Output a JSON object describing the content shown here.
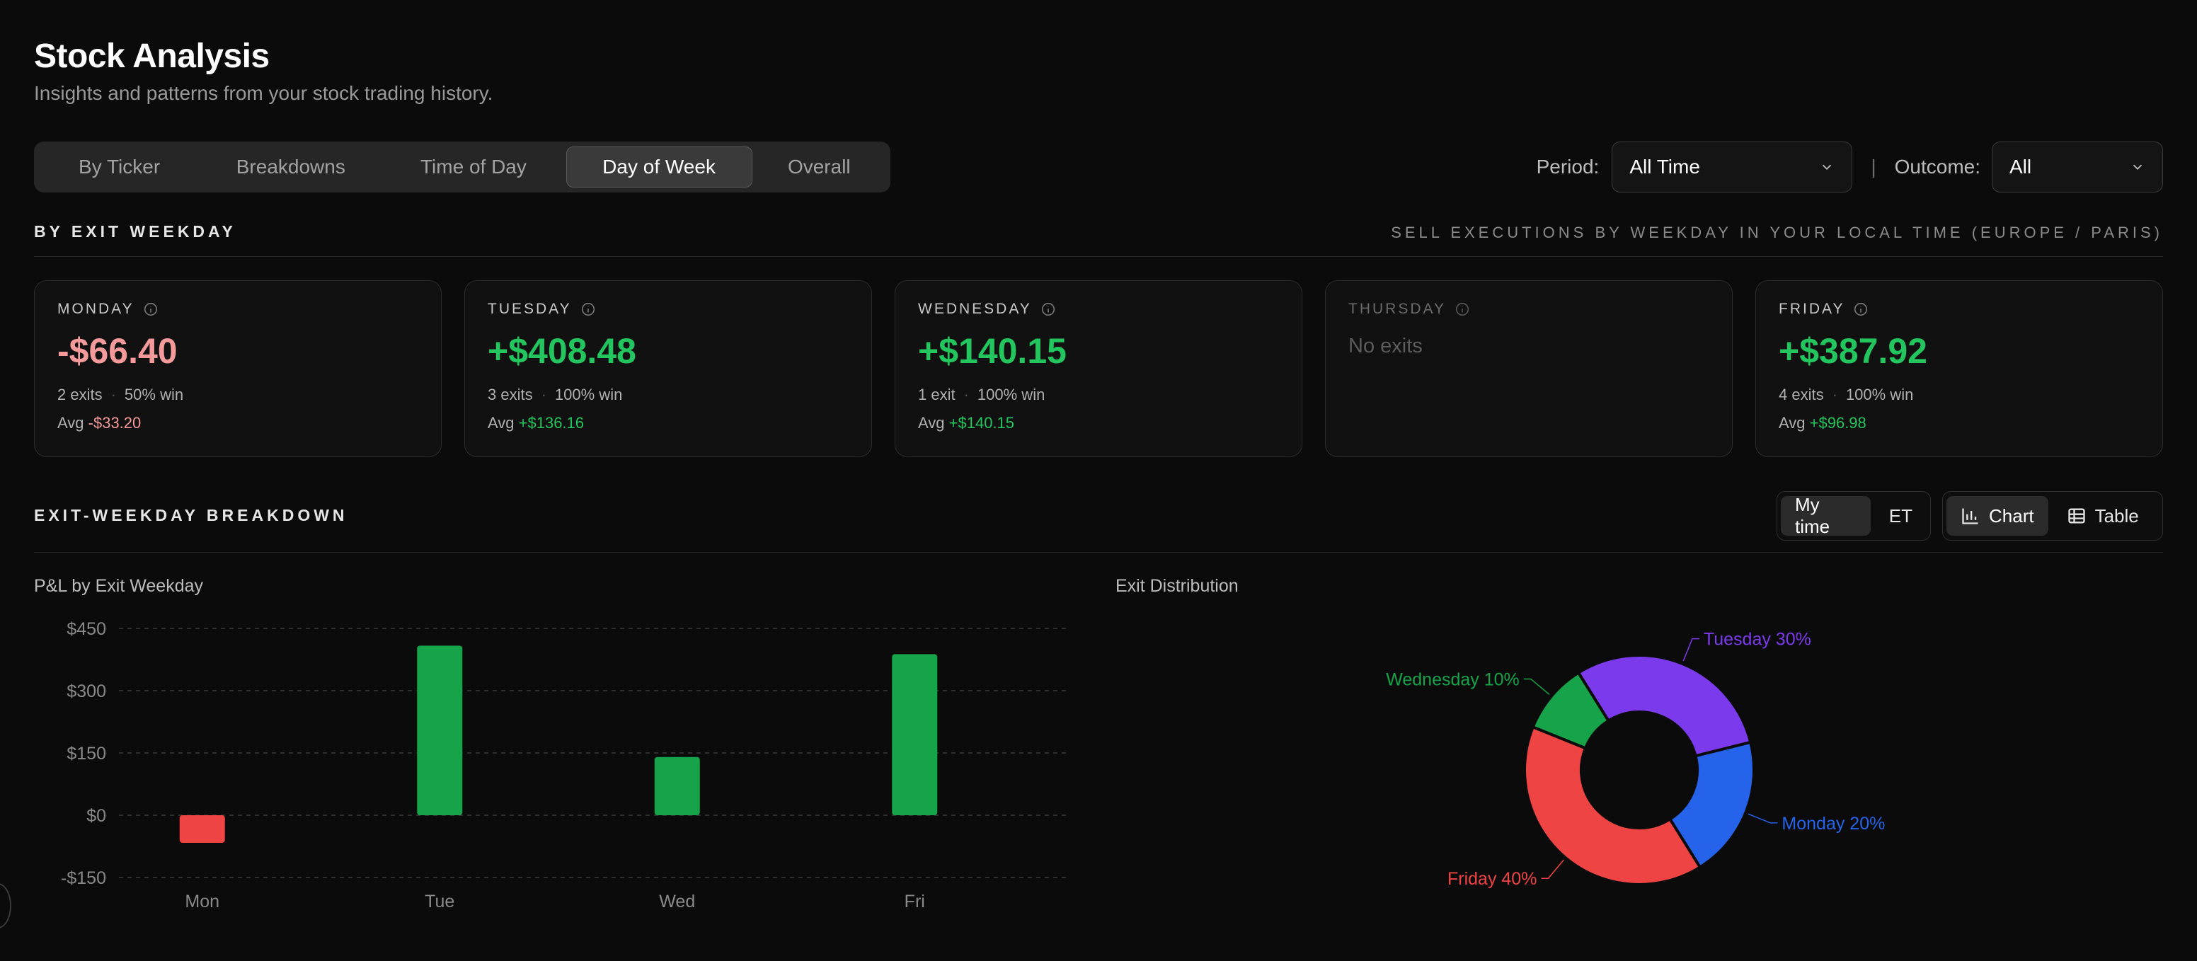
{
  "header": {
    "title": "Stock Analysis",
    "subtitle": "Insights and patterns from your stock trading history."
  },
  "tabs": [
    {
      "label": "By Ticker",
      "active": false
    },
    {
      "label": "Breakdowns",
      "active": false
    },
    {
      "label": "Time of Day",
      "active": false
    },
    {
      "label": "Day of Week",
      "active": true
    },
    {
      "label": "Overall",
      "active": false
    }
  ],
  "filters": {
    "period_label": "Period:",
    "period_value": "All Time",
    "outcome_label": "Outcome:",
    "outcome_value": "All",
    "separator": "|"
  },
  "by_exit_weekday": {
    "title": "BY EXIT WEEKDAY",
    "note": "SELL EXECUTIONS BY WEEKDAY IN YOUR LOCAL TIME (EUROPE / PARIS)",
    "cards": [
      {
        "day": "MONDAY",
        "value": "-$66.40",
        "sign": "neg",
        "exits": "2 exits",
        "win": "50% win",
        "avg_label": "Avg",
        "avg": "-$33.20"
      },
      {
        "day": "TUESDAY",
        "value": "+$408.48",
        "sign": "pos",
        "exits": "3 exits",
        "win": "100% win",
        "avg_label": "Avg",
        "avg": "+$136.16"
      },
      {
        "day": "WEDNESDAY",
        "value": "+$140.15",
        "sign": "pos",
        "exits": "1 exit",
        "win": "100% win",
        "avg_label": "Avg",
        "avg": "+$140.15"
      },
      {
        "day": "THURSDAY",
        "value": "",
        "sign": "none",
        "empty_text": "No exits"
      },
      {
        "day": "FRIDAY",
        "value": "+$387.92",
        "sign": "pos",
        "exits": "4 exits",
        "win": "100% win",
        "avg_label": "Avg",
        "avg": "+$96.98"
      }
    ]
  },
  "breakdown": {
    "title": "EXIT-WEEKDAY BREAKDOWN",
    "time_toggle": {
      "my_time": "My time",
      "et": "ET",
      "active": "My time"
    },
    "view_toggle": {
      "chart": "Chart",
      "table": "Table",
      "active": "Chart"
    }
  },
  "colors": {
    "positive": "#16a34a",
    "negative": "#ef4444",
    "monday": "#2563eb",
    "tuesday": "#7c3aed",
    "wednesday": "#16a34a",
    "friday": "#ef4444"
  },
  "chart_data": [
    {
      "type": "bar",
      "title": "P&L by Exit Weekday",
      "categories": [
        "Mon",
        "Tue",
        "Wed",
        "Fri"
      ],
      "values": [
        -66.4,
        408.48,
        140.15,
        387.92
      ],
      "ylim": [
        -150,
        450
      ],
      "yticks": [
        450,
        300,
        150,
        0,
        -150
      ],
      "ytick_labels": [
        "$450",
        "$300",
        "$150",
        "$0",
        "-$150"
      ],
      "grid": true
    },
    {
      "type": "pie",
      "title": "Exit Distribution",
      "donut": true,
      "slices": [
        {
          "label": "Monday 20%",
          "value": 20,
          "color": "#2563eb"
        },
        {
          "label": "Friday 40%",
          "value": 40,
          "color": "#ef4444"
        },
        {
          "label": "Wednesday 10%",
          "value": 10,
          "color": "#16a34a"
        },
        {
          "label": "Tuesday 30%",
          "value": 30,
          "color": "#7c3aed"
        }
      ]
    }
  ]
}
